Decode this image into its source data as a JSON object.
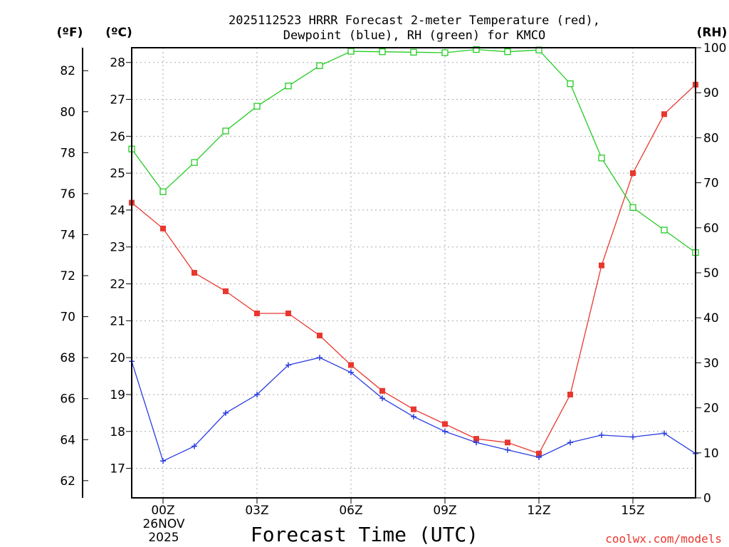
{
  "chart_data": {
    "type": "line",
    "title_line1": "2025112523 HRRR Forecast 2-meter Temperature (red),",
    "title_line2": "Dewpoint (blue), RH (green) for KMCO",
    "xlabel": "Forecast Time (UTC)",
    "x_date_label": "26NOV",
    "x_year_label": "2025",
    "x": [
      -1,
      0,
      1,
      2,
      3,
      4,
      5,
      6,
      7,
      8,
      9,
      10,
      11,
      12,
      13,
      14,
      15,
      16,
      17
    ],
    "x_ticks": [
      {
        "value": 0,
        "label": "00Z"
      },
      {
        "value": 3,
        "label": "03Z"
      },
      {
        "value": 6,
        "label": "06Z"
      },
      {
        "value": 9,
        "label": "09Z"
      },
      {
        "value": 12,
        "label": "12Z"
      },
      {
        "value": 15,
        "label": "15Z"
      }
    ],
    "xlim": [
      -1,
      17
    ],
    "celsius_axis": {
      "label": "(ºC)",
      "ylim": [
        16.2,
        28.4
      ],
      "ticks": [
        17,
        18,
        19,
        20,
        21,
        22,
        23,
        24,
        25,
        26,
        27,
        28
      ]
    },
    "fahrenheit_axis": {
      "label": "(ºF)",
      "ticks": [
        62,
        64,
        66,
        68,
        70,
        72,
        74,
        76,
        78,
        80,
        82
      ]
    },
    "rh_axis": {
      "label": "(RH)",
      "ylim": [
        0,
        100
      ],
      "ticks": [
        0,
        10,
        20,
        30,
        40,
        50,
        60,
        70,
        80,
        90,
        100
      ]
    },
    "series": [
      {
        "name": "Temperature",
        "axis": "celsius",
        "color": "#e8372e",
        "marker": "square",
        "values": [
          24.2,
          23.5,
          22.3,
          21.8,
          21.2,
          21.2,
          20.6,
          19.8,
          19.1,
          18.6,
          18.2,
          17.8,
          17.7,
          17.4,
          19.0,
          22.5,
          25.0,
          26.6,
          27.4
        ]
      },
      {
        "name": "Dewpoint",
        "axis": "celsius",
        "color": "#2a3de0",
        "marker": "plus",
        "values": [
          19.9,
          17.2,
          17.6,
          18.5,
          19.0,
          19.8,
          20.0,
          19.6,
          18.9,
          18.4,
          18.0,
          17.7,
          17.5,
          17.3,
          17.7,
          17.9,
          17.85,
          17.95,
          17.4
        ]
      },
      {
        "name": "RH",
        "axis": "rh",
        "color": "#22cc22",
        "marker": "open-square",
        "values": [
          77.5,
          68,
          74.5,
          81.5,
          87,
          91.5,
          96,
          99.2,
          99.1,
          99,
          98.9,
          99.6,
          99.1,
          99.5,
          92,
          75.5,
          64.5,
          59.5,
          54.5
        ]
      }
    ],
    "grid": true
  },
  "credit": "coolwx.com/models"
}
